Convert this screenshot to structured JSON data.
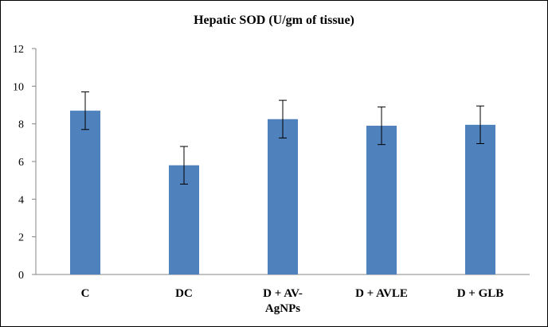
{
  "chart_data": {
    "type": "bar",
    "title": "Hepatic SOD (U/gm of tissue)",
    "xlabel": "",
    "ylabel": "",
    "categories": [
      [
        "C"
      ],
      [
        "DC"
      ],
      [
        "D + AV-",
        "AgNPs"
      ],
      [
        "D + AVLE"
      ],
      [
        "D + GLB"
      ]
    ],
    "values": [
      8.7,
      5.8,
      8.25,
      7.9,
      7.95
    ],
    "error": [
      1.0,
      1.0,
      1.0,
      1.0,
      1.0
    ],
    "ylim": [
      0,
      12
    ],
    "yticks": [
      "0",
      "2",
      "4",
      "6",
      "8",
      "10",
      "12"
    ],
    "grid": false,
    "legend": "none",
    "bar_color": "#4f81bd"
  }
}
